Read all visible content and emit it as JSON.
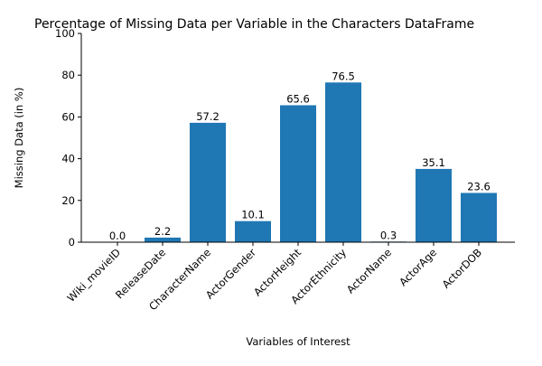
{
  "chart_data": {
    "type": "bar",
    "title": "Percentage of Missing Data per Variable in the Characters DataFrame",
    "xlabel": "Variables of Interest",
    "ylabel": "Missing Data (in %)",
    "ylim": [
      0,
      100
    ],
    "yticks": [
      0,
      20,
      40,
      60,
      80,
      100
    ],
    "categories": [
      "Wiki_movieID",
      "ReleaseDate",
      "CharacterName",
      "ActorGender",
      "ActorHeight",
      "ActorEthnicity",
      "ActorName",
      "ActorAge",
      "ActorDOB"
    ],
    "values": [
      0.0,
      2.2,
      57.2,
      10.1,
      65.6,
      76.5,
      0.3,
      35.1,
      23.6
    ],
    "data_labels": [
      "0.0",
      "2.2",
      "57.2",
      "10.1",
      "65.6",
      "76.5",
      "0.3",
      "35.1",
      "23.6"
    ],
    "bar_color": "#1f77b4",
    "grid": false,
    "legend": "none"
  }
}
